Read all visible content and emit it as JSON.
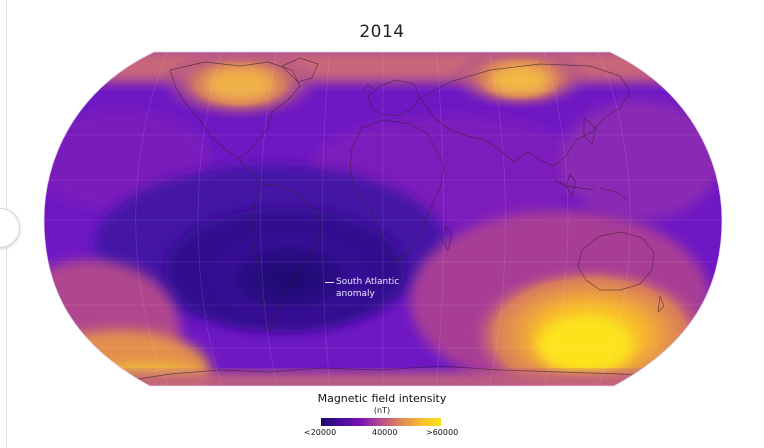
{
  "map": {
    "title": "2014",
    "annotation": {
      "line1": "South Atlantic",
      "line2": "anomaly"
    }
  },
  "legend": {
    "title": "Magnetic field intensity",
    "unit": "(nT)",
    "min_label": "<20000",
    "mid_label": "40000",
    "max_label": ">60000",
    "colors": [
      "#1c0a6e",
      "#4a0c9e",
      "#7d12b5",
      "#b84b8c",
      "#e08a55",
      "#f7bd2e",
      "#fbe21a"
    ]
  },
  "colors": {
    "weak_field": "#1c0a6e",
    "base_field": "#6e18c4",
    "mid_field": "#c25a7c",
    "strong_field": "#f5b62e",
    "peak_field": "#fce41c"
  }
}
